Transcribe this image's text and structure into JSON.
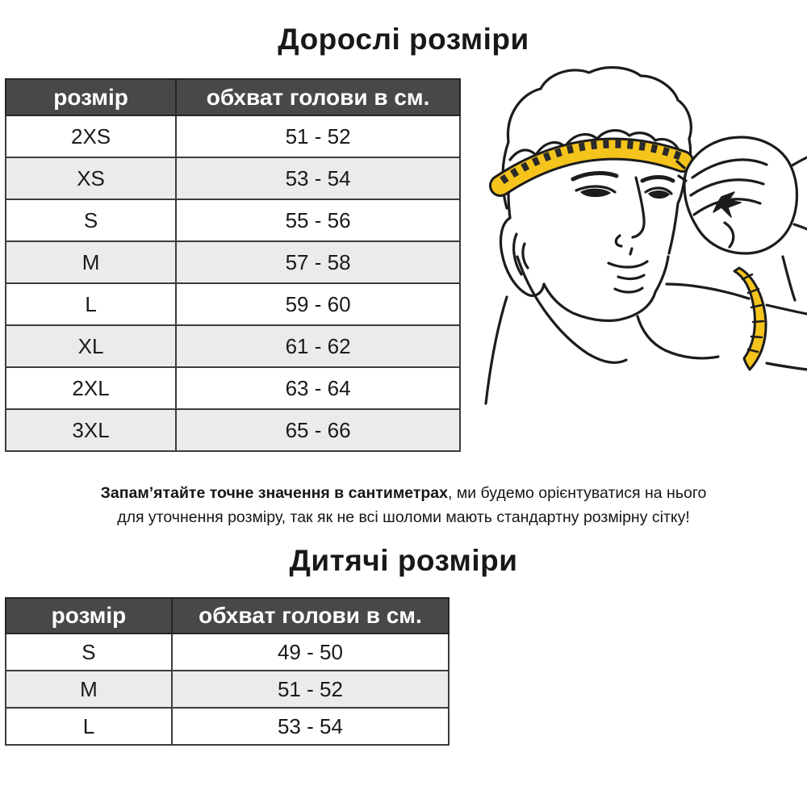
{
  "adult_section": {
    "title": "Дорослі розміри",
    "table": {
      "headers": [
        "розмір",
        "обхват голови в см."
      ],
      "rows": [
        [
          "2XS",
          "51 - 52"
        ],
        [
          "XS",
          "53 - 54"
        ],
        [
          "S",
          "55 - 56"
        ],
        [
          "M",
          "57 - 58"
        ],
        [
          "L",
          "59 - 60"
        ],
        [
          "XL",
          "61 - 62"
        ],
        [
          "2XL",
          "63 - 64"
        ],
        [
          "3XL",
          "65 - 66"
        ]
      ]
    }
  },
  "note": {
    "line1_bold": "Запам’ятайте точне значення в сантиметрах",
    "line1_regular": ", ми будемо орієнтуватися на нього",
    "line2": "для уточнення розміру, так як не всі шоломи мають стандартну розмірну сітку!"
  },
  "kids_section": {
    "title": "Дитячі розміри",
    "table": {
      "headers": [
        "розмір",
        "обхват голови в см."
      ],
      "rows": [
        [
          "S",
          "49 - 50"
        ],
        [
          "M",
          "51 - 52"
        ],
        [
          "L",
          "53 - 54"
        ]
      ]
    }
  },
  "illustration": {
    "description": "man measuring head circumference with yellow tape measure",
    "icon": "man-measuring-head-illustration"
  },
  "colors": {
    "header_bg": "#484848",
    "header_text": "#ffffff",
    "row_alt": "#ebebeb",
    "row_default": "#ffffff",
    "table_border": "#3c3c3c",
    "text": "#161616",
    "tape_yellow": "#f5c41c",
    "line_ink": "#1c1c1c"
  }
}
